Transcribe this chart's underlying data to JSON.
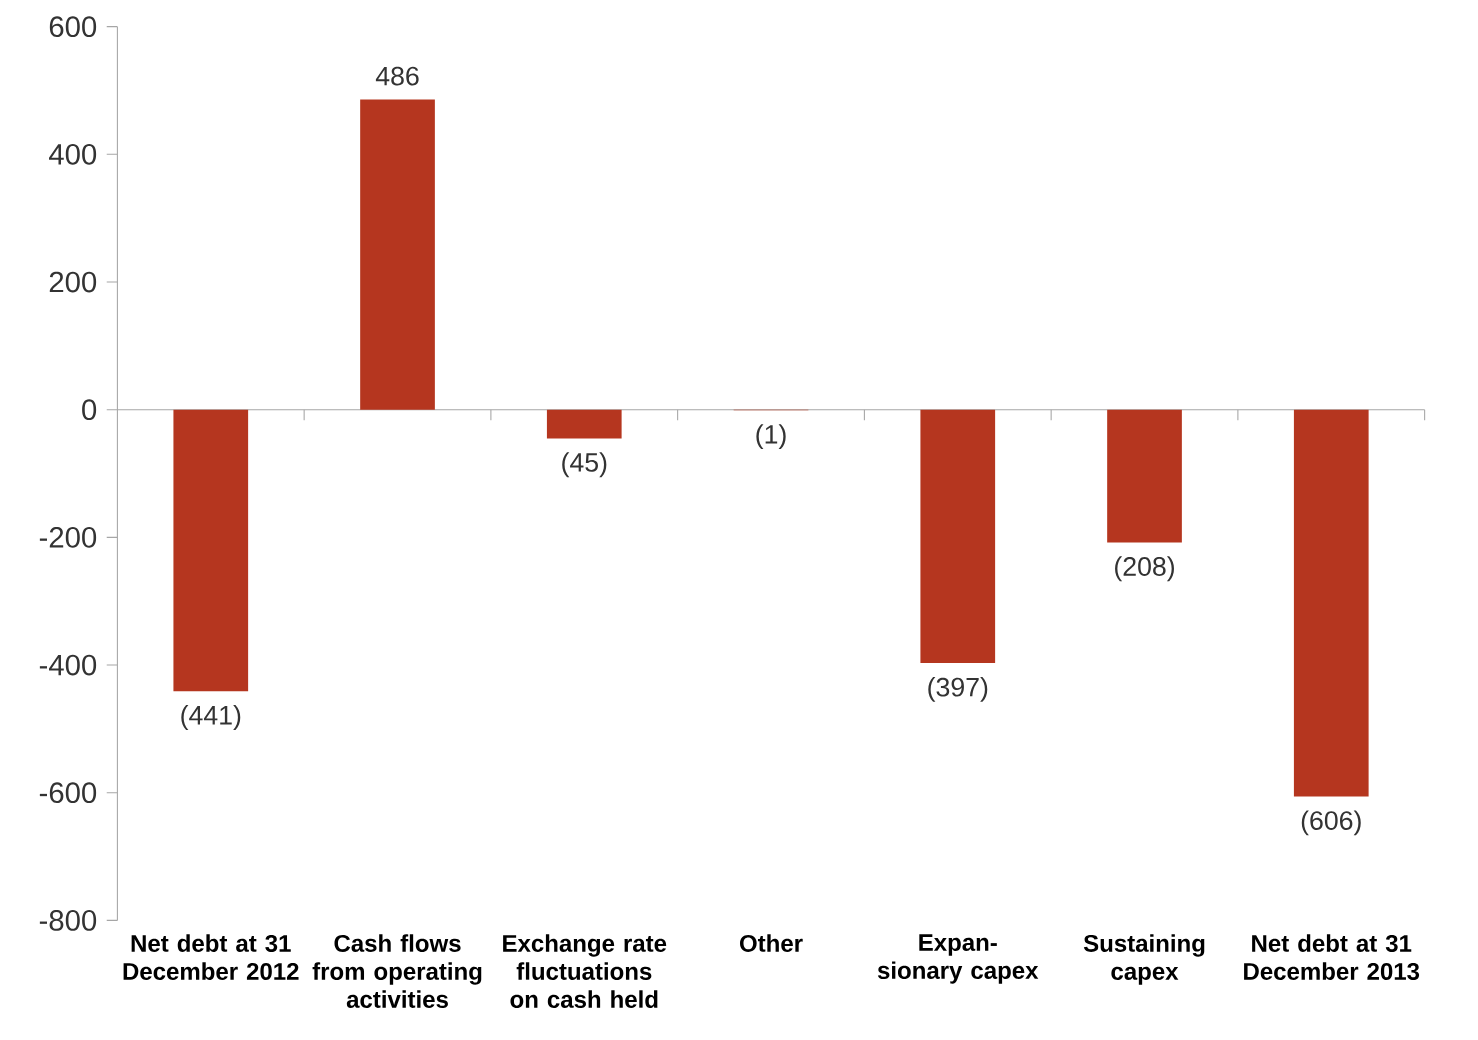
{
  "chart_data": {
    "type": "bar",
    "categories": [
      "Net debt at 31 December 2012",
      "Cash flows from operating activities",
      "Exchange rate fluctuations on cash held",
      "Other",
      "Expan-sionary capex",
      "Sustaining capex",
      "Net debt at 31 December 2013"
    ],
    "values": [
      -441,
      486,
      -45,
      -1,
      -397,
      -208,
      -606
    ],
    "value_labels": [
      "(441)",
      "486",
      "(45)",
      "(1)",
      "(397)",
      "(208)",
      "(606)"
    ],
    "color": "#b5361f",
    "ylim": [
      -800,
      600
    ],
    "yticks": [
      -800,
      -600,
      -400,
      -200,
      0,
      200,
      400,
      600
    ]
  }
}
